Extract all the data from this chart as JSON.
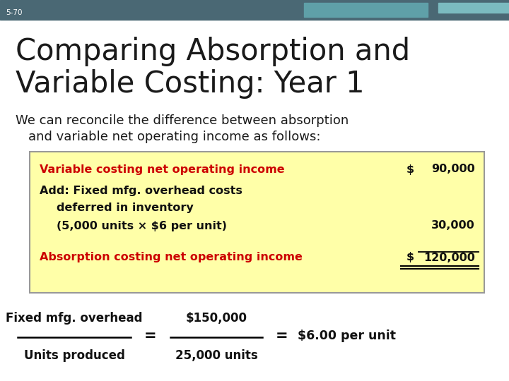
{
  "slide_number": "5-70",
  "title_line1": "Comparing Absorption and",
  "title_line2": "Variable Costing: Year 1",
  "subtitle_line1": "We can reconcile the difference between absorption",
  "subtitle_line2": "    and variable net operating income as follows:",
  "bg_color": "#ffffff",
  "header_bg": "#4a6874",
  "title_color": "#1a1a1a",
  "subtitle_color": "#1a1a1a",
  "table_bg": "#ffffa8",
  "table_border": "#999999",
  "red_color": "#cc0000",
  "black_color": "#111111",
  "teal_bar_color": "#5fa0a8",
  "teal_bar2_color": "#7bbbc0",
  "table_rows": [
    {
      "text": "Variable costing net operating income",
      "dollar": "$",
      "value": "90,000",
      "indent": 0,
      "red": true,
      "underline_before": false
    },
    {
      "text": "Add: Fixed mfg. overhead costs",
      "dollar": "",
      "value": "",
      "indent": 0,
      "red": false,
      "underline_before": false
    },
    {
      "text": "deferred in inventory",
      "dollar": "",
      "value": "",
      "indent": 1,
      "red": false,
      "underline_before": false
    },
    {
      "text": "(5,000 units × $6 per unit)",
      "dollar": "",
      "value": "30,000",
      "indent": 1,
      "red": false,
      "underline_before": false
    },
    {
      "text": "Absorption costing net operating income",
      "dollar": "$",
      "value": "120,000",
      "indent": 0,
      "red": true,
      "underline_before": true
    }
  ],
  "formula_left_top": "Fixed mfg. overhead",
  "formula_left_bot": "Units produced",
  "formula_right_top": "$150,000",
  "formula_right_bot": "25,000 units",
  "formula_result": "$6.00 per unit"
}
